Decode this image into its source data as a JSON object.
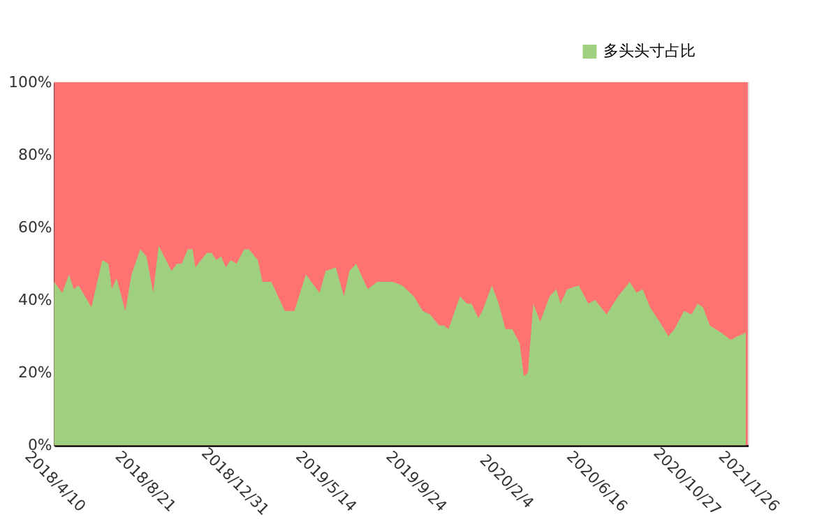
{
  "chart_data": {
    "type": "area",
    "x": [
      "2018-04-10",
      "2018-04-22",
      "2018-05-02",
      "2018-05-09",
      "2018-05-16",
      "2018-06-04",
      "2018-06-20",
      "2018-06-29",
      "2018-07-04",
      "2018-07-11",
      "2018-07-24",
      "2018-08-02",
      "2018-08-15",
      "2018-08-24",
      "2018-09-03",
      "2018-09-11",
      "2018-09-30",
      "2018-10-08",
      "2018-10-15",
      "2018-10-24",
      "2018-10-31",
      "2018-11-04",
      "2018-11-21",
      "2018-11-28",
      "2018-12-05",
      "2018-12-12",
      "2018-12-19",
      "2018-12-26",
      "2019-01-04",
      "2019-01-15",
      "2019-01-22",
      "2019-02-04",
      "2019-02-11",
      "2019-02-24",
      "2019-03-16",
      "2019-03-30",
      "2019-04-16",
      "2019-05-06",
      "2019-05-15",
      "2019-05-30",
      "2019-06-11",
      "2019-06-19",
      "2019-06-29",
      "2019-07-16",
      "2019-07-30",
      "2019-08-22",
      "2019-09-05",
      "2019-09-22",
      "2019-10-05",
      "2019-10-16",
      "2019-10-29",
      "2019-11-05",
      "2019-11-12",
      "2019-11-29",
      "2019-12-09",
      "2019-12-16",
      "2019-12-26",
      "2020-01-01",
      "2020-01-15",
      "2020-01-25",
      "2020-02-04",
      "2020-02-14",
      "2020-02-25",
      "2020-03-02",
      "2020-03-08",
      "2020-03-16",
      "2020-03-26",
      "2020-04-09",
      "2020-04-19",
      "2020-04-25",
      "2020-05-05",
      "2020-05-22",
      "2020-06-05",
      "2020-06-15",
      "2020-07-02",
      "2020-07-19",
      "2020-08-05",
      "2020-08-15",
      "2020-08-24",
      "2020-09-04",
      "2020-09-18",
      "2020-10-01",
      "2020-10-10",
      "2020-10-24",
      "2020-11-04",
      "2020-11-13",
      "2020-11-21",
      "2020-12-01",
      "2020-12-18",
      "2021-01-01",
      "2021-01-11",
      "2021-01-23"
    ],
    "series": [
      {
        "name": "多头头寸占比",
        "color": "#9fd07f",
        "values": [
          45,
          42,
          47,
          43,
          44,
          38,
          51,
          50,
          43,
          46,
          37,
          47,
          54,
          52,
          42,
          55,
          48,
          50,
          50,
          54,
          54,
          49,
          53,
          53,
          51,
          52,
          49,
          51,
          50,
          54,
          54,
          51,
          45,
          45,
          37,
          37,
          47,
          42,
          48,
          49,
          41,
          48,
          50,
          43,
          45,
          45,
          44,
          41,
          37,
          36,
          33,
          33,
          32,
          41,
          39,
          39,
          35,
          37,
          44,
          39,
          32,
          32,
          28,
          19,
          20,
          39,
          34,
          41,
          43,
          39,
          43,
          44,
          39,
          40,
          36,
          41,
          45,
          42,
          43,
          38,
          34,
          30,
          32,
          37,
          36,
          39,
          38,
          33,
          31,
          29,
          30,
          31
        ]
      }
    ],
    "bands": [
      {
        "axis": "y",
        "from": 0,
        "to": 100,
        "color": "#ff7272"
      }
    ],
    "xlim": [
      "2018-04-10",
      "2021-01-26"
    ],
    "xticks": [
      {
        "value": "2018-04-10",
        "label": "2018/4/10"
      },
      {
        "value": "2018-08-21",
        "label": "2018/8/21"
      },
      {
        "value": "2018-12-31",
        "label": "2018/12/31"
      },
      {
        "value": "2019-05-14",
        "label": "2019/5/14"
      },
      {
        "value": "2019-09-24",
        "label": "2019/9/24"
      },
      {
        "value": "2020-02-04",
        "label": "2020/2/4"
      },
      {
        "value": "2020-06-16",
        "label": "2020/6/16"
      },
      {
        "value": "2020-10-27",
        "label": "2020/10/27"
      },
      {
        "value": "2021-01-26",
        "label": "2021/1/26"
      }
    ],
    "ylim": [
      0,
      100
    ],
    "yticks": [
      {
        "value": 0,
        "label": "0%"
      },
      {
        "value": 20,
        "label": "20%"
      },
      {
        "value": 40,
        "label": "40%"
      },
      {
        "value": 60,
        "label": "60%"
      },
      {
        "value": 80,
        "label": "80%"
      },
      {
        "value": 100,
        "label": "100%"
      }
    ],
    "legend": "top right"
  }
}
